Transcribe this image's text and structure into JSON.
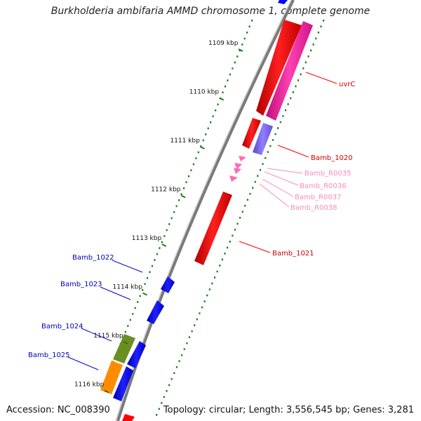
{
  "title": "Burkholderia ambifaria AMMD chromosome 1, complete genome",
  "footer": {
    "accession": "Accession: NC_008390",
    "summary": "Topology: circular; Length: 3,556,545 bp; Genes: 3,281"
  },
  "ticks": [
    "1109 kbp",
    "1110 kbp",
    "1111 kbp",
    "1112 kbp",
    "1113 kbp",
    "1114 kbp",
    "1115 kbp",
    "1116 kbp"
  ],
  "labels": {
    "uvrc": "uvrC",
    "bamb_1020": "Bamb_1020",
    "bamb_r0035": "Bamb_R0035",
    "bamb_r0036": "Bamb_R0036",
    "bamb_r0037": "Bamb_R0037",
    "bamb_r0038": "Bamb_R0038",
    "bamb_1021": "Bamb_1021",
    "bamb_1022": "Bamb_1022",
    "bamb_1023": "Bamb_1023",
    "bamb_1024": "Bamb_1024",
    "bamb_1025": "Bamb_1025"
  },
  "colors": {
    "forward_cds": "#ff0000",
    "reverse_cds": "#0000ff",
    "forward_gene": "#ff1493",
    "reverse_gene": "#7b68ee",
    "rna": "#ff69b4",
    "label_rna": "#ff88bb",
    "reverse_green": "#6b8e23",
    "reverse_orange": "#ff8c00",
    "gc_dots": "#1f7a1f",
    "backbone": "#888888"
  }
}
